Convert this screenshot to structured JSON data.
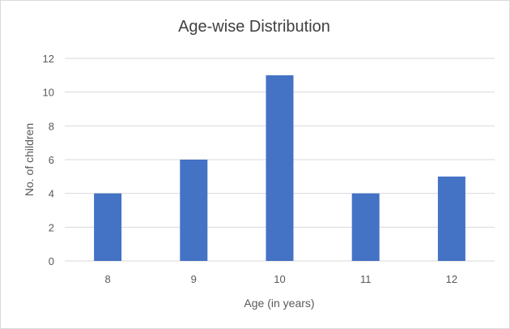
{
  "chart_data": {
    "type": "bar",
    "title": "Age-wise Distribution",
    "xlabel": "Age (in years)",
    "ylabel": "No. of children",
    "categories": [
      "8",
      "9",
      "10",
      "11",
      "12"
    ],
    "values": [
      4,
      6,
      11,
      4,
      5
    ],
    "ylim": [
      0,
      12
    ],
    "yticks": [
      0,
      2,
      4,
      6,
      8,
      10,
      12
    ],
    "grid": true,
    "legend": "none",
    "colors": {
      "bar": "#4472c4",
      "grid": "#d9d9d9",
      "text": "#595959",
      "title": "#404040"
    }
  }
}
